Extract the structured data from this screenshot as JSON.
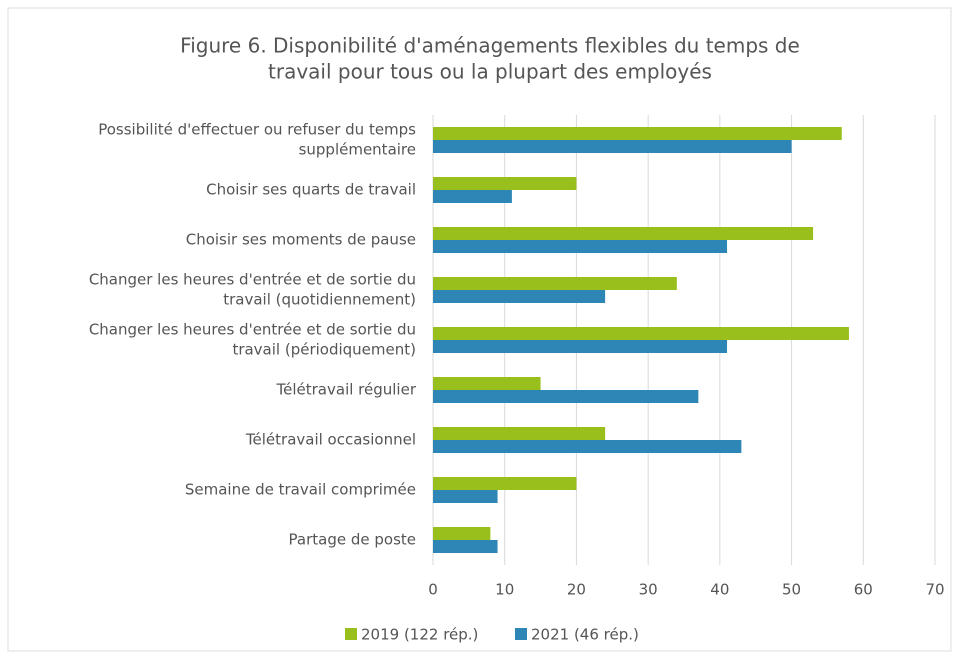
{
  "chart_data": {
    "type": "hbar",
    "title": [
      "Figure 6. Disponibilité d'aménagements flexibles du temps de",
      "travail pour tous ou la plupart des employés"
    ],
    "categories": [
      [
        "Possibilité d'effectuer ou refuser du temps",
        "supplémentaire"
      ],
      [
        "Choisir ses quarts de travail"
      ],
      [
        "Choisir ses moments de pause"
      ],
      [
        "Changer les heures d'entrée et de sortie du",
        "travail (quotidiennement)"
      ],
      [
        "Changer les heures d'entrée et de sortie du",
        "travail (périodiquement)"
      ],
      [
        "Télétravail régulier"
      ],
      [
        "Télétravail occasionnel"
      ],
      [
        "Semaine de travail comprimée"
      ],
      [
        "Partage de poste"
      ]
    ],
    "series": [
      {
        "name": "2019 (122 rép.)",
        "color": "#99bf1c",
        "values": [
          57,
          20,
          53,
          34,
          58,
          15,
          24,
          20,
          8
        ]
      },
      {
        "name": "2021 (46 rép.)",
        "color": "#2d86b6",
        "values": [
          50,
          11,
          41,
          24,
          41,
          37,
          43,
          9,
          9
        ]
      }
    ],
    "xlim": [
      0,
      70
    ],
    "xticks": [
      0,
      10,
      20,
      30,
      40,
      50,
      60,
      70
    ],
    "grid": true,
    "legend": "bottom"
  }
}
